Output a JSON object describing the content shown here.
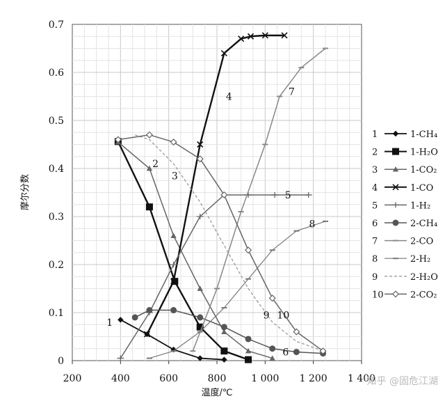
{
  "chart_data": {
    "type": "line",
    "xlabel": "温度/℃",
    "ylabel": "摩尔分数",
    "xlim": [
      200,
      1400
    ],
    "ylim": [
      0,
      0.7
    ],
    "x_ticks": [
      "200",
      "400",
      "600",
      "800",
      "1 000",
      "1 200",
      "1 400"
    ],
    "y_ticks": [
      "0",
      "0.1",
      "0.2",
      "0.3",
      "0.4",
      "0.5",
      "0.6",
      "0.7"
    ],
    "grid": true,
    "legend_position": "right",
    "series": [
      {
        "id": "1",
        "name": "1-CH₄",
        "color": "#111111",
        "width": 1.8,
        "dash": "",
        "marker": "diamond",
        "x": [
          400,
          510,
          620,
          730,
          830
        ],
        "y": [
          0.085,
          0.055,
          0.023,
          0.005,
          0.002
        ]
      },
      {
        "id": "2",
        "name": "1-H₂O",
        "color": "#111111",
        "width": 2.4,
        "dash": "",
        "marker": "square",
        "x": [
          390,
          520,
          625,
          730,
          830,
          930
        ],
        "y": [
          0.456,
          0.32,
          0.165,
          0.07,
          0.02,
          0.002
        ]
      },
      {
        "id": "3",
        "name": "1-CO₂",
        "color": "#666666",
        "width": 1.5,
        "dash": "",
        "marker": "triangle",
        "x": [
          390,
          520,
          620,
          730,
          830,
          930,
          1030
        ],
        "y": [
          0.455,
          0.4,
          0.26,
          0.15,
          0.06,
          0.02,
          0.005
        ]
      },
      {
        "id": "4",
        "name": "1-CO",
        "color": "#111111",
        "width": 2.4,
        "dash": "",
        "marker": "x",
        "x": [
          510,
          620,
          730,
          830,
          900,
          940,
          1000,
          1080
        ],
        "y": [
          0.055,
          0.165,
          0.45,
          0.64,
          0.67,
          0.675,
          0.677,
          0.677
        ]
      },
      {
        "id": "5",
        "name": "1-H₂",
        "color": "#666666",
        "width": 1.5,
        "dash": "",
        "marker": "plus",
        "x": [
          400,
          520,
          620,
          730,
          830,
          930,
          1040,
          1180
        ],
        "y": [
          0.005,
          0.1,
          0.2,
          0.3,
          0.345,
          0.345,
          0.345,
          0.345
        ]
      },
      {
        "id": "6",
        "name": "2-CH₄",
        "color": "#555555",
        "width": 1.5,
        "dash": "",
        "marker": "circle",
        "x": [
          460,
          520,
          620,
          730,
          830,
          930,
          1030,
          1130,
          1240
        ],
        "y": [
          0.09,
          0.105,
          0.105,
          0.09,
          0.07,
          0.045,
          0.025,
          0.018,
          0.015
        ]
      },
      {
        "id": "7",
        "name": "2-CO",
        "color": "#888888",
        "width": 1.5,
        "dash": "",
        "marker": "dash",
        "x": [
          700,
          800,
          900,
          1000,
          1060,
          1150,
          1250
        ],
        "y": [
          0.02,
          0.15,
          0.31,
          0.45,
          0.55,
          0.61,
          0.65
        ]
      },
      {
        "id": "8",
        "name": "2-H₂",
        "color": "#777777",
        "width": 1.2,
        "dash": "",
        "marker": "dash",
        "x": [
          520,
          620,
          730,
          830,
          930,
          1030,
          1130,
          1250
        ],
        "y": [
          0.005,
          0.02,
          0.06,
          0.11,
          0.17,
          0.23,
          0.27,
          0.29
        ]
      },
      {
        "id": "9",
        "name": "2-H₂O",
        "color": "#999999",
        "width": 1.3,
        "dash": "4,3",
        "marker": "none",
        "x": [
          460,
          520,
          620,
          730,
          830,
          930,
          1030,
          1130,
          1240
        ],
        "y": [
          0.47,
          0.46,
          0.41,
          0.33,
          0.24,
          0.15,
          0.08,
          0.04,
          0.02
        ]
      },
      {
        "id": "10",
        "name": "2-CO₂",
        "color": "#666666",
        "width": 1.5,
        "dash": "",
        "marker": "diamond-open",
        "x": [
          390,
          520,
          620,
          730,
          830,
          930,
          1030,
          1130,
          1240
        ],
        "y": [
          0.46,
          0.47,
          0.455,
          0.42,
          0.345,
          0.23,
          0.13,
          0.06,
          0.02
        ]
      }
    ],
    "curve_labels": [
      {
        "text": "1",
        "x": 355,
        "y": 0.08
      },
      {
        "text": "2",
        "x": 545,
        "y": 0.41
      },
      {
        "text": "3",
        "x": 625,
        "y": 0.385
      },
      {
        "text": "4",
        "x": 850,
        "y": 0.55
      },
      {
        "text": "5",
        "x": 1095,
        "y": 0.345
      },
      {
        "text": "6",
        "x": 1085,
        "y": 0.018
      },
      {
        "text": "7",
        "x": 1110,
        "y": 0.56
      },
      {
        "text": "8",
        "x": 1195,
        "y": 0.285
      },
      {
        "text": "9",
        "x": 1005,
        "y": 0.095
      },
      {
        "text": "10",
        "x": 1075,
        "y": 0.095
      }
    ]
  },
  "watermark": "知乎 @固危江湖"
}
